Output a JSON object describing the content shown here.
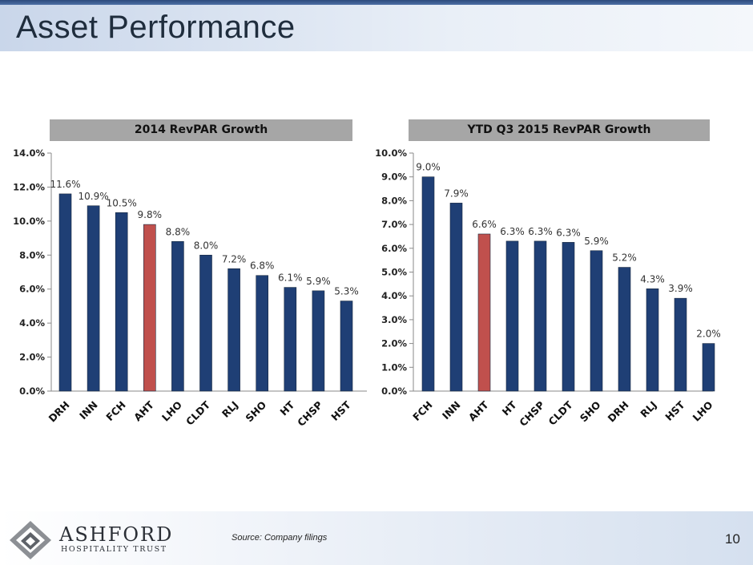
{
  "page": {
    "title": "Asset Performance",
    "source": "Source: Company filings",
    "page_number": "10",
    "logo_name": "ASHFORD",
    "logo_subtitle": "HOSPITALITY TRUST"
  },
  "colors": {
    "bar": "#1f3f75",
    "highlight": "#c0504d"
  },
  "chart_data": [
    {
      "type": "bar",
      "title": "2014 RevPAR Growth",
      "categories": [
        "DRH",
        "INN",
        "FCH",
        "AHT",
        "LHO",
        "CLDT",
        "RLJ",
        "SHO",
        "HT",
        "CHSP",
        "HST"
      ],
      "values": [
        11.6,
        10.9,
        10.5,
        9.8,
        8.8,
        8.0,
        7.2,
        6.8,
        6.1,
        5.9,
        5.3
      ],
      "data_labels": [
        "11.6%",
        "10.9%",
        "10.5%",
        "9.8%",
        "8.8%",
        "8.0%",
        "7.2%",
        "6.8%",
        "6.1%",
        "5.9%",
        "5.3%"
      ],
      "highlight": "AHT",
      "ylim": [
        0,
        14
      ],
      "yticks": [
        0,
        2,
        4,
        6,
        8,
        10,
        12,
        14
      ],
      "ytick_labels": [
        "0.0%",
        "2.0%",
        "4.0%",
        "6.0%",
        "8.0%",
        "10.0%",
        "12.0%",
        "14.0%"
      ],
      "grid": false,
      "legend": "none"
    },
    {
      "type": "bar",
      "title": "YTD Q3 2015 RevPAR Growth",
      "categories": [
        "FCH",
        "INN",
        "AHT",
        "HT",
        "CHSP",
        "CLDT",
        "SHO",
        "DRH",
        "RLJ",
        "HST",
        "LHO"
      ],
      "values": [
        9.0,
        7.9,
        6.6,
        6.3,
        6.3,
        6.25,
        5.9,
        5.2,
        4.3,
        3.9,
        2.0
      ],
      "data_labels": [
        "9.0%",
        "7.9%",
        "6.6%",
        "6.3%",
        "6.3%",
        "6.3%",
        "5.9%",
        "5.2%",
        "4.3%",
        "3.9%",
        "2.0%"
      ],
      "highlight": "AHT",
      "ylim": [
        0,
        10
      ],
      "yticks": [
        0,
        1,
        2,
        3,
        4,
        5,
        6,
        7,
        8,
        9,
        10
      ],
      "ytick_labels": [
        "0.0%",
        "1.0%",
        "2.0%",
        "3.0%",
        "4.0%",
        "5.0%",
        "6.0%",
        "7.0%",
        "8.0%",
        "9.0%",
        "10.0%"
      ],
      "grid": false,
      "legend": "none"
    }
  ]
}
